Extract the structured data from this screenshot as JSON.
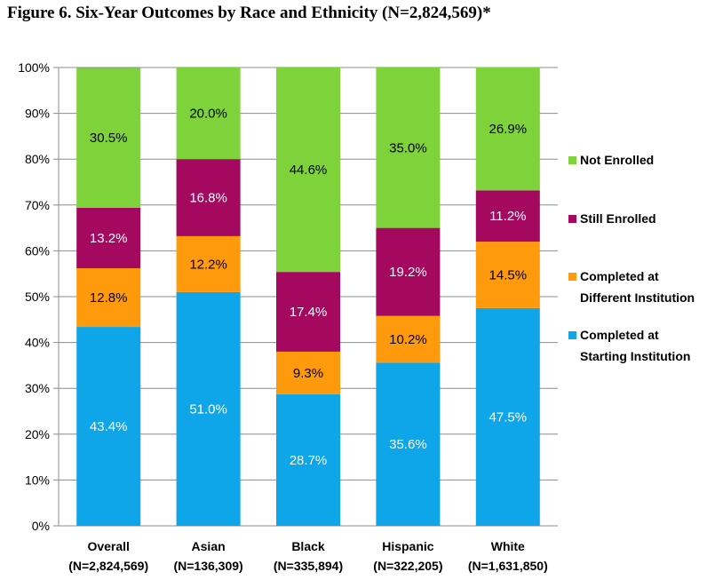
{
  "figure": {
    "title": "Figure 6. Six-Year Outcomes by Race and Ethnicity (N=2,824,569)*"
  },
  "chart_data": {
    "type": "bar",
    "stacked": true,
    "ylim": [
      0,
      100
    ],
    "yticks": [
      "0%",
      "10%",
      "20%",
      "30%",
      "40%",
      "50%",
      "60%",
      "70%",
      "80%",
      "90%",
      "100%"
    ],
    "grid": true,
    "legend_position": "right",
    "categories": [
      {
        "name": "Overall",
        "n": "(N=2,824,569)"
      },
      {
        "name": "Asian",
        "n": "(N=136,309)"
      },
      {
        "name": "Black",
        "n": "(N=335,894)"
      },
      {
        "name": "Hispanic",
        "n": "(N=322,205)"
      },
      {
        "name": "White",
        "n": "(N=1,631,850)"
      }
    ],
    "series": [
      {
        "name": "Completed at Starting Institution",
        "legend_lines": [
          "Completed at",
          "Starting Institution"
        ],
        "color": "#0ea5e9",
        "label_color": "#ffffff",
        "values": [
          43.4,
          51.0,
          28.7,
          35.6,
          47.5
        ],
        "labels": [
          "43.4%",
          "51.0%",
          "28.7%",
          "35.6%",
          "47.5%"
        ]
      },
      {
        "name": "Completed at Different Institution",
        "legend_lines": [
          "Completed at",
          "Different Institution"
        ],
        "color": "#ff9a0d",
        "label_color": "#000000",
        "values": [
          12.8,
          12.2,
          9.3,
          10.2,
          14.5
        ],
        "labels": [
          "12.8%",
          "12.2%",
          "9.3%",
          "10.2%",
          "14.5%"
        ]
      },
      {
        "name": "Still Enrolled",
        "legend_lines": [
          "Still Enrolled"
        ],
        "color": "#a5085f",
        "label_color": "#ffffff",
        "values": [
          13.2,
          16.8,
          17.4,
          19.2,
          11.2
        ],
        "labels": [
          "13.2%",
          "16.8%",
          "17.4%",
          "19.2%",
          "11.2%"
        ]
      },
      {
        "name": "Not Enrolled",
        "legend_lines": [
          "Not Enrolled"
        ],
        "color": "#7ed23a",
        "label_color": "#000000",
        "values": [
          30.5,
          20.0,
          44.6,
          35.0,
          26.9
        ],
        "labels": [
          "30.5%",
          "20.0%",
          "44.6%",
          "35.0%",
          "26.9%"
        ]
      }
    ]
  }
}
